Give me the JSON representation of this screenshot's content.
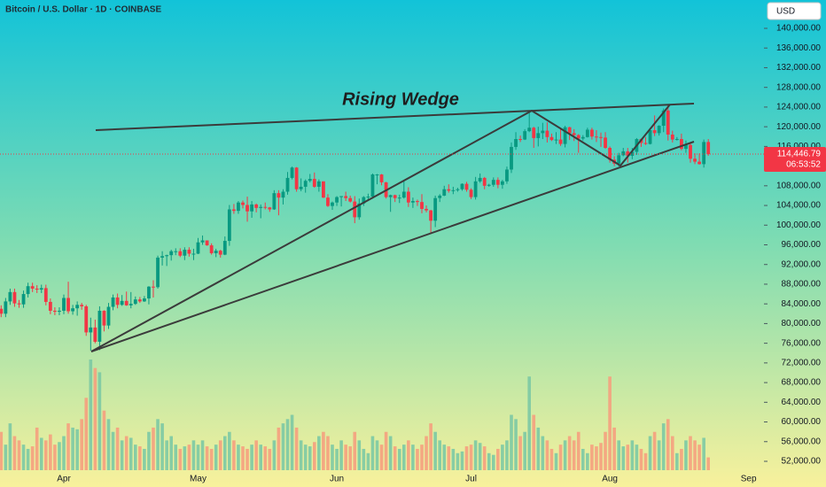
{
  "chart_data": {
    "type": "candlestick",
    "title": "Bitcoin / U.S. Dollar · 1D · COINBASE",
    "currency": "USD",
    "annotation": "Rising Wedge",
    "up_color": "#089981",
    "down_color": "#f23645",
    "up_volume_color": "#7cc9a4",
    "down_volume_color": "#f5a07e",
    "grid": false,
    "ylim": [
      52000,
      140000
    ],
    "yticks": [
      {
        "value": 52000,
        "label": "52,000.00"
      },
      {
        "value": 56000,
        "label": "56,000.00"
      },
      {
        "value": 60000,
        "label": "60,000.00"
      },
      {
        "value": 64000,
        "label": "64,000.00"
      },
      {
        "value": 68000,
        "label": "68,000.00"
      },
      {
        "value": 72000,
        "label": "72,000.00"
      },
      {
        "value": 76000,
        "label": "76,000.00"
      },
      {
        "value": 80000,
        "label": "80,000.00"
      },
      {
        "value": 84000,
        "label": "84,000.00"
      },
      {
        "value": 88000,
        "label": "88,000.00"
      },
      {
        "value": 92000,
        "label": "92,000.00"
      },
      {
        "value": 96000,
        "label": "96,000.00"
      },
      {
        "value": 100000,
        "label": "100,000.00"
      },
      {
        "value": 104000,
        "label": "104,000.00"
      },
      {
        "value": 108000,
        "label": "108,000.00"
      },
      {
        "value": 112000,
        "label": "112,000.00"
      },
      {
        "value": 116000,
        "label": "116,000.00"
      },
      {
        "value": 120000,
        "label": "120,000.00"
      },
      {
        "value": 124000,
        "label": "124,000.00"
      },
      {
        "value": 128000,
        "label": "128,000.00"
      },
      {
        "value": 132000,
        "label": "132,000.00"
      },
      {
        "value": 136000,
        "label": "136,000.00"
      },
      {
        "value": 140000,
        "label": "140,000.00"
      }
    ],
    "price_tag": {
      "value": 114446.79,
      "label": "114,446.79",
      "countdown": "06:53:52"
    },
    "categories": [
      null,
      null,
      null,
      null,
      null,
      null,
      null,
      null,
      null,
      null,
      null,
      null,
      null,
      null,
      "Apr",
      null,
      null,
      null,
      null,
      null,
      null,
      null,
      null,
      null,
      null,
      null,
      null,
      null,
      null,
      null,
      null,
      null,
      null,
      null,
      null,
      null,
      null,
      null,
      null,
      null,
      null,
      null,
      null,
      null,
      "May",
      null,
      null,
      null,
      null,
      null,
      null,
      null,
      null,
      null,
      null,
      null,
      null,
      null,
      null,
      null,
      null,
      null,
      null,
      null,
      null,
      null,
      null,
      null,
      null,
      null,
      null,
      null,
      null,
      null,
      null,
      "Jun",
      null,
      null,
      null,
      null,
      null,
      null,
      null,
      null,
      null,
      null,
      null,
      null,
      null,
      null,
      null,
      null,
      null,
      null,
      null,
      null,
      null,
      null,
      null,
      null,
      null,
      null,
      null,
      null,
      null,
      "Jul",
      null,
      null,
      null,
      null,
      null,
      null,
      null,
      null,
      null,
      null,
      null,
      null,
      null,
      null,
      null,
      null,
      null,
      null,
      null,
      null,
      null,
      null,
      null,
      null,
      null,
      null,
      null,
      null,
      null,
      null,
      "Aug",
      null,
      null,
      null,
      null,
      null,
      null,
      null,
      null,
      null,
      null,
      null,
      null,
      null,
      null,
      null,
      null,
      null,
      null,
      null,
      null,
      null,
      null,
      null,
      null,
      null,
      null,
      null,
      null,
      null,
      null,
      "Sep"
    ],
    "ohlc": [
      [
        83000,
        83700,
        81300,
        82000
      ],
      [
        82000,
        85200,
        81300,
        84500
      ],
      [
        84500,
        87100,
        83800,
        86400
      ],
      [
        86400,
        87100,
        83400,
        84100
      ],
      [
        84100,
        84800,
        83200,
        83900
      ],
      [
        83900,
        86700,
        83200,
        86000
      ],
      [
        86000,
        88300,
        85300,
        87600
      ],
      [
        87600,
        88300,
        86400,
        87100
      ],
      [
        87100,
        87800,
        86200,
        86900
      ],
      [
        86900,
        87900,
        86200,
        87200
      ],
      [
        87200,
        87900,
        83700,
        84400
      ],
      [
        84400,
        85100,
        81900,
        82600
      ],
      [
        82600,
        83300,
        81700,
        82400
      ],
      [
        82400,
        83300,
        81700,
        82600
      ],
      [
        82600,
        85900,
        81900,
        85200
      ],
      [
        85200,
        88500,
        82000,
        82500
      ],
      [
        82500,
        83800,
        81800,
        83100
      ],
      [
        83100,
        84500,
        81600,
        83800
      ],
      [
        83800,
        84200,
        82800,
        83500
      ],
      [
        83500,
        83800,
        77500,
        78200
      ],
      [
        78200,
        81200,
        74500,
        79200
      ],
      [
        79200,
        80800,
        76000,
        76300
      ],
      [
        76300,
        83500,
        74600,
        82600
      ],
      [
        82600,
        82700,
        78400,
        79600
      ],
      [
        79600,
        84200,
        78900,
        83400
      ],
      [
        83400,
        85900,
        82700,
        85300
      ],
      [
        85300,
        86100,
        83100,
        83800
      ],
      [
        83800,
        85800,
        83600,
        84600
      ],
      [
        84600,
        86500,
        83600,
        83700
      ],
      [
        83700,
        86400,
        83100,
        84000
      ],
      [
        84000,
        85500,
        83800,
        84900
      ],
      [
        84900,
        85400,
        84200,
        84500
      ],
      [
        84500,
        85600,
        84400,
        85100
      ],
      [
        85100,
        87600,
        83900,
        87500
      ],
      [
        87500,
        88800,
        85300,
        87400
      ],
      [
        87400,
        93800,
        87100,
        93400
      ],
      [
        93400,
        94700,
        91800,
        93700
      ],
      [
        93700,
        94000,
        91700,
        93900
      ],
      [
        93900,
        95000,
        92800,
        94700
      ],
      [
        94700,
        95300,
        93900,
        94700
      ],
      [
        94700,
        95300,
        93500,
        93800
      ],
      [
        93800,
        95500,
        92900,
        95000
      ],
      [
        95000,
        95500,
        93600,
        94200
      ],
      [
        94200,
        95200,
        92900,
        94200
      ],
      [
        94200,
        97400,
        94100,
        96500
      ],
      [
        96500,
        97900,
        96000,
        96900
      ],
      [
        96900,
        96900,
        95800,
        95900
      ],
      [
        95900,
        96300,
        94000,
        94300
      ],
      [
        94300,
        95200,
        93500,
        94800
      ],
      [
        94800,
        95000,
        93400,
        94000
      ],
      [
        94000,
        97700,
        93900,
        96800
      ],
      [
        96800,
        104100,
        95800,
        103200
      ],
      [
        103200,
        104300,
        102300,
        102900
      ],
      [
        102900,
        104900,
        102300,
        104600
      ],
      [
        104600,
        105000,
        103400,
        104100
      ],
      [
        104100,
        105800,
        100700,
        102800
      ],
      [
        102800,
        104900,
        101500,
        104200
      ],
      [
        104200,
        104400,
        102600,
        103500
      ],
      [
        103500,
        104200,
        101400,
        103700
      ],
      [
        103700,
        104600,
        103200,
        103600
      ],
      [
        103600,
        103700,
        102700,
        103200
      ],
      [
        103200,
        107100,
        103100,
        106500
      ],
      [
        106500,
        107100,
        102000,
        105600
      ],
      [
        105600,
        107300,
        104200,
        106800
      ],
      [
        106800,
        110800,
        106200,
        109600
      ],
      [
        109600,
        111900,
        109300,
        111700
      ],
      [
        111700,
        111800,
        106800,
        107300
      ],
      [
        107300,
        109500,
        106900,
        107800
      ],
      [
        107800,
        109300,
        106600,
        109000
      ],
      [
        109000,
        110400,
        108700,
        109400
      ],
      [
        109400,
        110700,
        107600,
        107800
      ],
      [
        107800,
        109300,
        106800,
        108900
      ],
      [
        108900,
        108900,
        105500,
        105600
      ],
      [
        105600,
        106300,
        103700,
        103900
      ],
      [
        103900,
        104800,
        103100,
        104600
      ],
      [
        104600,
        105900,
        103900,
        105700
      ],
      [
        105700,
        105900,
        103800,
        105900
      ],
      [
        105900,
        106800,
        104900,
        105500
      ],
      [
        105500,
        106000,
        104600,
        104800
      ],
      [
        104800,
        105900,
        100400,
        101600
      ],
      [
        101600,
        105400,
        101100,
        104400
      ],
      [
        104400,
        105900,
        103900,
        105700
      ],
      [
        105700,
        106400,
        105100,
        105800
      ],
      [
        105800,
        110500,
        105400,
        110300
      ],
      [
        110300,
        110400,
        108300,
        110300
      ],
      [
        110300,
        110400,
        108100,
        108700
      ],
      [
        108700,
        108800,
        105400,
        105700
      ],
      [
        105700,
        106200,
        102700,
        106100
      ],
      [
        106100,
        106200,
        104700,
        105500
      ],
      [
        105500,
        106200,
        104500,
        105600
      ],
      [
        105600,
        108900,
        105400,
        106800
      ],
      [
        106800,
        107700,
        103700,
        104600
      ],
      [
        104600,
        105600,
        103500,
        104900
      ],
      [
        104900,
        105200,
        103900,
        104700
      ],
      [
        104700,
        106300,
        102400,
        103300
      ],
      [
        103300,
        104000,
        102600,
        103000
      ],
      [
        103000,
        103100,
        98200,
        100900
      ],
      [
        100900,
        106000,
        99600,
        105500
      ],
      [
        105500,
        106300,
        104700,
        106000
      ],
      [
        106000,
        108000,
        105900,
        107300
      ],
      [
        107300,
        108300,
        106600,
        107000
      ],
      [
        107000,
        107800,
        106300,
        107100
      ],
      [
        107100,
        107600,
        106800,
        107300
      ],
      [
        107300,
        108500,
        107000,
        108400
      ],
      [
        108400,
        108800,
        106800,
        107200
      ],
      [
        107200,
        107500,
        105300,
        105700
      ],
      [
        105700,
        109800,
        105200,
        108900
      ],
      [
        108900,
        110500,
        108600,
        109600
      ],
      [
        109600,
        109800,
        107300,
        108000
      ],
      [
        108000,
        108400,
        107800,
        108200
      ],
      [
        108200,
        109700,
        107800,
        109200
      ],
      [
        109200,
        109700,
        107500,
        108200
      ],
      [
        108200,
        109200,
        107400,
        108900
      ],
      [
        108900,
        111900,
        108400,
        111300
      ],
      [
        111300,
        116800,
        110600,
        115900
      ],
      [
        115900,
        118900,
        115300,
        117500
      ],
      [
        117500,
        118200,
        116900,
        117400
      ],
      [
        117400,
        119500,
        117300,
        119100
      ],
      [
        119100,
        123200,
        118900,
        119800
      ],
      [
        119800,
        120000,
        115700,
        117700
      ],
      [
        117700,
        120000,
        116000,
        118700
      ],
      [
        118700,
        120800,
        117500,
        119200
      ],
      [
        119200,
        120900,
        116800,
        117900
      ],
      [
        117900,
        118600,
        117100,
        117300
      ],
      [
        117300,
        118900,
        116500,
        117400
      ],
      [
        117400,
        119700,
        116100,
        116500
      ],
      [
        116500,
        120200,
        115800,
        119900
      ],
      [
        119900,
        120000,
        117300,
        118700
      ],
      [
        118700,
        119500,
        117100,
        118300
      ],
      [
        118300,
        118500,
        114700,
        117600
      ],
      [
        117600,
        118300,
        117200,
        117900
      ],
      [
        117900,
        119800,
        117800,
        119400
      ],
      [
        119400,
        119800,
        117400,
        118000
      ],
      [
        118000,
        119300,
        116900,
        117900
      ],
      [
        117900,
        118800,
        115900,
        117800
      ],
      [
        117800,
        118900,
        115500,
        115700
      ],
      [
        115700,
        116000,
        112700,
        113300
      ],
      [
        113300,
        114000,
        112000,
        112500
      ],
      [
        112500,
        114700,
        111900,
        114200
      ],
      [
        114200,
        115700,
        114000,
        115000
      ],
      [
        115000,
        115700,
        112700,
        114100
      ],
      [
        114100,
        115700,
        113400,
        114900
      ],
      [
        114900,
        117700,
        114300,
        117500
      ],
      [
        117500,
        117600,
        115900,
        116700
      ],
      [
        116700,
        117900,
        116300,
        116500
      ],
      [
        116500,
        119300,
        116400,
        119300
      ],
      [
        119300,
        122300,
        118100,
        118700
      ],
      [
        118700,
        120300,
        118200,
        120200
      ],
      [
        120200,
        123700,
        118900,
        123300
      ],
      [
        123300,
        124500,
        117200,
        118400
      ],
      [
        118400,
        119200,
        116800,
        117400
      ],
      [
        117400,
        117900,
        117200,
        117500
      ],
      [
        117500,
        118600,
        115200,
        115500
      ],
      [
        115500,
        117200,
        114700,
        116300
      ],
      [
        116300,
        116800,
        112700,
        113500
      ],
      [
        113500,
        114600,
        112400,
        112900
      ],
      [
        112900,
        114600,
        112300,
        112400
      ],
      [
        112400,
        117400,
        111700,
        116900
      ],
      [
        116900,
        117500,
        114100,
        114446.79
      ],
      null,
      null,
      null,
      null,
      null,
      null,
      null,
      null,
      null
    ],
    "volume": [
      45,
      30,
      55,
      40,
      35,
      30,
      25,
      28,
      50,
      38,
      35,
      42,
      30,
      33,
      40,
      55,
      50,
      48,
      60,
      85,
      130,
      120,
      115,
      70,
      60,
      45,
      50,
      35,
      40,
      38,
      30,
      28,
      25,
      45,
      50,
      60,
      55,
      35,
      40,
      30,
      25,
      28,
      30,
      35,
      30,
      35,
      28,
      25,
      30,
      35,
      40,
      45,
      35,
      30,
      28,
      25,
      30,
      35,
      30,
      28,
      25,
      35,
      50,
      55,
      60,
      65,
      50,
      35,
      30,
      28,
      33,
      40,
      45,
      40,
      30,
      25,
      35,
      30,
      28,
      45,
      35,
      25,
      20,
      40,
      35,
      30,
      45,
      40,
      28,
      25,
      30,
      35,
      30,
      25,
      30,
      40,
      55,
      45,
      35,
      30,
      28,
      25,
      20,
      22,
      28,
      30,
      35,
      32,
      28,
      20,
      18,
      25,
      30,
      35,
      65,
      60,
      40,
      45,
      110,
      65,
      50,
      40,
      35,
      25,
      20,
      30,
      35,
      40,
      35,
      45,
      25,
      20,
      30,
      28,
      32,
      45,
      110,
      50,
      35,
      28,
      30,
      35,
      30,
      25,
      20,
      40,
      45,
      35,
      55,
      60,
      40,
      20,
      25,
      35,
      40,
      35,
      30,
      38,
      15,
      null,
      null,
      null,
      null,
      null,
      null,
      null,
      null,
      null
    ]
  }
}
